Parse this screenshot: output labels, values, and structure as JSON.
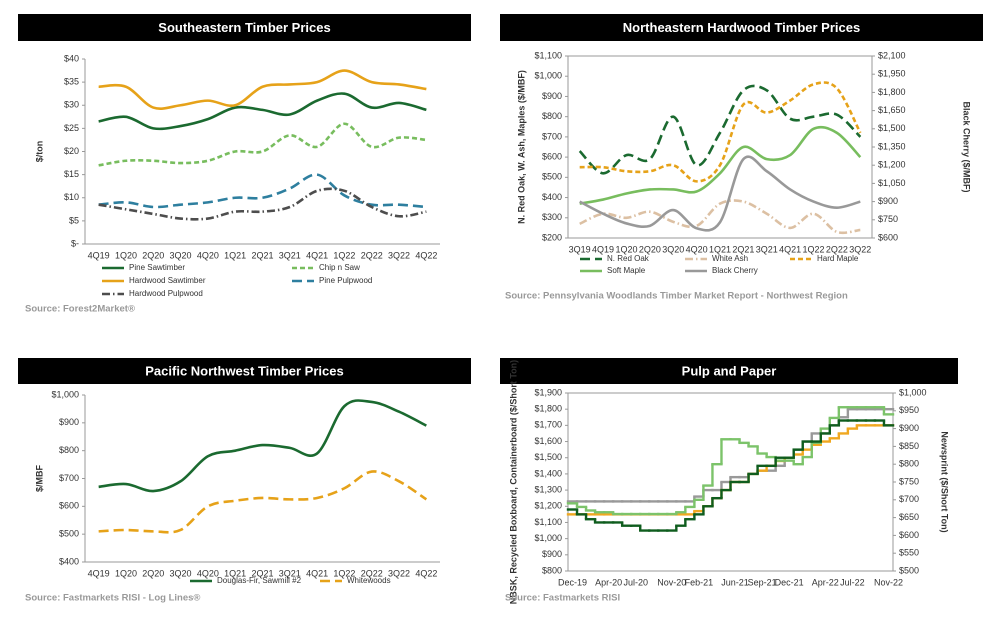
{
  "chart_data": [
    {
      "type": "line",
      "title": "Southeastern Timber Prices",
      "y_label": "$/ton",
      "source": "Source: Forest2Market®",
      "categories": [
        "4Q19",
        "1Q20",
        "2Q20",
        "3Q20",
        "4Q20",
        "1Q21",
        "2Q21",
        "3Q21",
        "4Q21",
        "1Q22",
        "2Q22",
        "3Q22",
        "4Q22"
      ],
      "ylim": [
        0,
        40
      ],
      "yticks": [
        {
          "value": 0,
          "label": "$-"
        },
        {
          "value": 5,
          "label": "$5"
        },
        {
          "value": 10,
          "label": "$10"
        },
        {
          "value": 15,
          "label": "$15"
        },
        {
          "value": 20,
          "label": "$20"
        },
        {
          "value": 25,
          "label": "$25"
        },
        {
          "value": 30,
          "label": "$30"
        },
        {
          "value": 35,
          "label": "$35"
        },
        {
          "value": 40,
          "label": "$40"
        }
      ],
      "smooth": true,
      "grid": false,
      "series": [
        {
          "name": "Pine Sawtimber",
          "color": "#1b6a30",
          "dash": "solid",
          "values": [
            26.5,
            27.5,
            25,
            25.5,
            27,
            29.5,
            29,
            28,
            31,
            32.5,
            29.5,
            30.5,
            29
          ]
        },
        {
          "name": "Chip n Saw",
          "color": "#78bd5e",
          "dash": "dashed",
          "values": [
            17,
            18,
            18,
            17.5,
            18,
            20,
            20,
            23.5,
            21,
            26,
            21,
            23,
            22.5
          ]
        },
        {
          "name": "Hardwood Sawtimber",
          "color": "#e6a219",
          "dash": "solid",
          "values": [
            34,
            34,
            29.5,
            30,
            31,
            30,
            34,
            34.5,
            35,
            37.5,
            35,
            34.5,
            33.5
          ]
        },
        {
          "name": "Pine Pulpwood",
          "color": "#2e7f9f",
          "dash": "longdash",
          "values": [
            8.5,
            9,
            8,
            8.5,
            9,
            10,
            10,
            12,
            15,
            10.5,
            8.5,
            8.5,
            8
          ]
        },
        {
          "name": "Hardwood Pulpwood",
          "color": "#4d4d4d",
          "dash": "dashdot",
          "values": [
            8.5,
            7.5,
            6.5,
            5.5,
            5.5,
            7,
            7,
            8,
            11.5,
            11.5,
            8,
            6,
            7
          ]
        }
      ]
    },
    {
      "type": "line",
      "title": "Northeastern Hardwood Timber Prices",
      "y_label": "N. Red Oak, W. Ash, Maples ($/MBF)",
      "y2_label": "Black Cherry ($/MBF)",
      "source": "Source: Pennsylvania Woodlands Timber Market Report - Northwest Region",
      "categories": [
        "3Q19",
        "4Q19",
        "1Q20",
        "2Q20",
        "3Q20",
        "4Q20",
        "1Q21",
        "2Q21",
        "3Q21",
        "4Q21",
        "1Q22",
        "2Q22",
        "3Q22"
      ],
      "ylim": [
        200,
        1100
      ],
      "yticks": [
        {
          "value": 200,
          "label": "$200"
        },
        {
          "value": 300,
          "label": "$300"
        },
        {
          "value": 400,
          "label": "$400"
        },
        {
          "value": 500,
          "label": "$500"
        },
        {
          "value": 600,
          "label": "$600"
        },
        {
          "value": 700,
          "label": "$700"
        },
        {
          "value": 800,
          "label": "$800"
        },
        {
          "value": 900,
          "label": "$900"
        },
        {
          "value": 1000,
          "label": "$1,000"
        },
        {
          "value": 1100,
          "label": "$1,100"
        }
      ],
      "y2lim": [
        600,
        2100
      ],
      "y2ticks": [
        {
          "value": 600,
          "label": "$600"
        },
        {
          "value": 750,
          "label": "$750"
        },
        {
          "value": 900,
          "label": "$900"
        },
        {
          "value": 1050,
          "label": "$1,050"
        },
        {
          "value": 1200,
          "label": "$1,200"
        },
        {
          "value": 1350,
          "label": "$1,350"
        },
        {
          "value": 1500,
          "label": "$1,500"
        },
        {
          "value": 1650,
          "label": "$1,650"
        },
        {
          "value": 1800,
          "label": "$1,800"
        },
        {
          "value": 1950,
          "label": "$1,950"
        },
        {
          "value": 2100,
          "label": "$2,100"
        }
      ],
      "smooth": true,
      "grid": false,
      "series": [
        {
          "name": "N. Red Oak",
          "color": "#1b6a30",
          "dash": "longdash",
          "values": [
            630,
            520,
            610,
            590,
            800,
            560,
            720,
            930,
            930,
            790,
            800,
            810,
            700
          ]
        },
        {
          "name": "White Ash",
          "color": "#dcc0a3",
          "dash": "dashdot",
          "values": [
            270,
            320,
            300,
            330,
            280,
            260,
            370,
            380,
            320,
            250,
            320,
            230,
            240
          ]
        },
        {
          "name": "Hard Maple",
          "color": "#e6a219",
          "dash": "dashed",
          "values": [
            550,
            550,
            530,
            530,
            560,
            480,
            560,
            860,
            820,
            880,
            960,
            940,
            720
          ]
        },
        {
          "name": "Soft Maple",
          "color": "#78bd5e",
          "dash": "solid",
          "values": [
            370,
            390,
            420,
            440,
            440,
            430,
            520,
            650,
            590,
            610,
            740,
            720,
            600
          ]
        },
        {
          "name": "Black Cherry",
          "color": "#999999",
          "dash": "solid",
          "axis": "y2",
          "values": [
            900,
            800,
            720,
            700,
            830,
            680,
            730,
            1250,
            1150,
            1000,
            900,
            850,
            900
          ]
        }
      ]
    },
    {
      "type": "line",
      "title": "Pacific Northwest Timber Prices",
      "y_label": "$/MBF",
      "source": "Source: Fastmarkets RISI - Log Lines®",
      "categories": [
        "4Q19",
        "1Q20",
        "2Q20",
        "3Q20",
        "4Q20",
        "1Q21",
        "2Q21",
        "3Q21",
        "4Q21",
        "1Q22",
        "2Q22",
        "3Q22",
        "4Q22"
      ],
      "ylim": [
        400,
        1000
      ],
      "yticks": [
        {
          "value": 400,
          "label": "$400"
        },
        {
          "value": 500,
          "label": "$500"
        },
        {
          "value": 600,
          "label": "$600"
        },
        {
          "value": 700,
          "label": "$700"
        },
        {
          "value": 800,
          "label": "$800"
        },
        {
          "value": 900,
          "label": "$900"
        },
        {
          "value": 1000,
          "label": "$1,000"
        }
      ],
      "smooth": true,
      "grid": false,
      "series": [
        {
          "name": "Douglas-Fir, Sawmill #2",
          "color": "#1b6a30",
          "dash": "solid",
          "values": [
            670,
            680,
            655,
            690,
            780,
            800,
            820,
            810,
            790,
            960,
            975,
            940,
            890
          ]
        },
        {
          "name": "Whitewoods",
          "color": "#e6a219",
          "dash": "longdash",
          "values": [
            510,
            515,
            510,
            515,
            600,
            620,
            630,
            625,
            630,
            665,
            725,
            690,
            625
          ]
        }
      ]
    },
    {
      "type": "step",
      "title": "Pulp and Paper",
      "y_label": "NBSK, Recycled Boxboard, Containerboard ($/Short Ton)",
      "y2_label": "Newsprint ($/Short Ton)",
      "source": "Source: Fastmarkets RISI",
      "categories": [
        "Dec-19",
        null,
        null,
        null,
        "Apr-20",
        null,
        null,
        "Jul-20",
        null,
        null,
        null,
        "Nov-20",
        null,
        null,
        "Feb-21",
        null,
        null,
        null,
        "Jun-21",
        null,
        null,
        "Sep-21",
        null,
        null,
        "Dec-21",
        null,
        null,
        null,
        "Apr-22",
        null,
        null,
        "Jul-22",
        null,
        null,
        null,
        "Nov-22"
      ],
      "ylim": [
        800,
        1900
      ],
      "yticks": [
        {
          "value": 800,
          "label": "$800"
        },
        {
          "value": 900,
          "label": "$900"
        },
        {
          "value": 1000,
          "label": "$1,000"
        },
        {
          "value": 1100,
          "label": "$1,100"
        },
        {
          "value": 1200,
          "label": "$1,200"
        },
        {
          "value": 1300,
          "label": "$1,300"
        },
        {
          "value": 1400,
          "label": "$1,400"
        },
        {
          "value": 1500,
          "label": "$1,500"
        },
        {
          "value": 1600,
          "label": "$1,600"
        },
        {
          "value": 1700,
          "label": "$1,700"
        },
        {
          "value": 1800,
          "label": "$1,800"
        },
        {
          "value": 1900,
          "label": "$1,900"
        }
      ],
      "y2lim": [
        500,
        1000
      ],
      "y2ticks": [
        {
          "value": 500,
          "label": "$500"
        },
        {
          "value": 550,
          "label": "$550"
        },
        {
          "value": 600,
          "label": "$600"
        },
        {
          "value": 650,
          "label": "$650"
        },
        {
          "value": 700,
          "label": "$700"
        },
        {
          "value": 750,
          "label": "$750"
        },
        {
          "value": 800,
          "label": "$800"
        },
        {
          "value": 850,
          "label": "$850"
        },
        {
          "value": 900,
          "label": "$900"
        },
        {
          "value": 950,
          "label": "$950"
        },
        {
          "value": 1000,
          "label": "$1,000"
        }
      ],
      "grid": false,
      "series": [
        {
          "color": "#999999",
          "values": [
            1230,
            1230,
            1230,
            1230,
            1230,
            1230,
            1230,
            1230,
            1230,
            1230,
            1230,
            1230,
            1230,
            1230,
            1260,
            1300,
            1300,
            1350,
            1380,
            1380,
            1400,
            1420,
            1420,
            1450,
            1500,
            1550,
            1600,
            1650,
            1650,
            1700,
            1750,
            1800,
            1800,
            1800,
            1800,
            1800
          ]
        },
        {
          "color": "#f0a820",
          "values": [
            1150,
            1150,
            1150,
            1150,
            1150,
            1150,
            1150,
            1150,
            1150,
            1150,
            1150,
            1150,
            1150,
            1150,
            1170,
            1200,
            1250,
            1300,
            1350,
            1350,
            1400,
            1420,
            1450,
            1480,
            1500,
            1520,
            1550,
            1580,
            1600,
            1620,
            1650,
            1680,
            1700,
            1700,
            1700,
            1700
          ]
        },
        {
          "color": "#7cc36a",
          "axis": "y2",
          "values": [
            690,
            680,
            670,
            665,
            665,
            660,
            660,
            660,
            660,
            660,
            660,
            660,
            665,
            680,
            700,
            740,
            800,
            870,
            870,
            860,
            850,
            830,
            820,
            810,
            810,
            800,
            820,
            860,
            900,
            930,
            960,
            960,
            960,
            960,
            960,
            940
          ]
        },
        {
          "color": "#0f5d1e",
          "values": [
            1180,
            1150,
            1120,
            1100,
            1100,
            1100,
            1080,
            1080,
            1050,
            1050,
            1050,
            1050,
            1080,
            1120,
            1150,
            1200,
            1250,
            1300,
            1350,
            1350,
            1400,
            1450,
            1450,
            1500,
            1500,
            1550,
            1600,
            1600,
            1650,
            1700,
            1730,
            1730,
            1730,
            1730,
            1730,
            1700
          ]
        }
      ]
    }
  ]
}
